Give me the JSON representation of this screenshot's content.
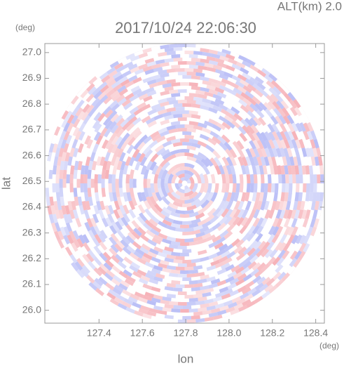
{
  "chart_data": {
    "type": "radar-ppi",
    "title": "2017/10/24 22:06:30",
    "subtitle": "ALT(km) 2.0",
    "x_label": "lon",
    "y_label": "lat",
    "x_unit": "(deg)",
    "y_unit": "(deg)",
    "xlim": [
      127.15,
      128.44
    ],
    "ylim": [
      25.95,
      27.035
    ],
    "xticks": [
      127.4,
      127.6,
      127.8,
      {
        "value": 128.0,
        "label": "128.0"
      },
      128.2,
      128.4
    ],
    "yticks": [
      {
        "value": 26.0,
        "label": "26.0"
      },
      26.1,
      26.2,
      26.3,
      26.4,
      26.5,
      26.6,
      26.7,
      26.8,
      26.9,
      {
        "value": 27.0,
        "label": "27.0"
      }
    ],
    "colors": [
      "#f4a0a8",
      "#a8aef4"
    ]
  }
}
